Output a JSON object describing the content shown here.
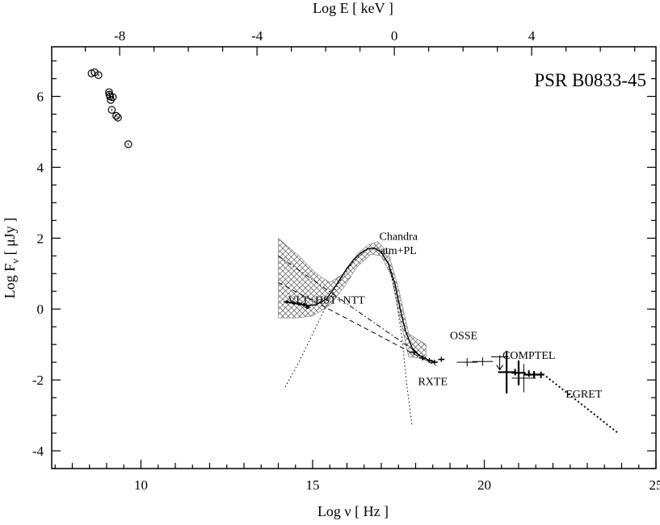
{
  "chart_data": {
    "type": "scatter",
    "title": "PSR B0833-45",
    "xlabel": "Log ν   [ Hz ]",
    "ylabel": {
      "main": "Log F",
      "subscript": "ν",
      "unit": " [ μJy ]"
    },
    "top_xlabel": "Log E  [ keV ]",
    "xlim": [
      7.4,
      25
    ],
    "ylim": [
      -4.5,
      7.4
    ],
    "top_xlim": [
      -9.98,
      7.62
    ],
    "xticks": [
      10,
      15,
      20,
      25
    ],
    "xtick_labels": [
      "10",
      "15",
      "20",
      "25"
    ],
    "yticks": [
      -4,
      -2,
      0,
      2,
      4,
      6
    ],
    "ytick_labels": [
      "-4",
      "-2",
      "0",
      "2",
      "4",
      "6"
    ],
    "top_xticks": [
      -8,
      -4,
      0,
      4
    ],
    "top_xtick_labels": [
      "-8",
      "-4",
      "0",
      "4"
    ],
    "grid": false,
    "annotations": [
      {
        "text": "VLT+HST+NTT",
        "x": 15.4,
        "y": 0.15
      },
      {
        "text": "Chandra",
        "x": 17.5,
        "y": 1.95
      },
      {
        "text": "atm+PL",
        "x": 17.5,
        "y": 1.55
      },
      {
        "text": "RXTE",
        "x": 18.5,
        "y": -2.15
      },
      {
        "text": "OSSE",
        "x": 19.4,
        "y": -0.85
      },
      {
        "text": "COMPTEL",
        "x": 21.3,
        "y": -1.4
      },
      {
        "text": "EGRET",
        "x": 22.9,
        "y": -2.5
      }
    ],
    "series": [
      {
        "style": "radio-circles",
        "points": [
          {
            "x": 8.56,
            "y": 6.65
          },
          {
            "x": 8.65,
            "y": 6.68
          },
          {
            "x": 8.76,
            "y": 6.6
          },
          {
            "x": 9.07,
            "y": 6.12
          },
          {
            "x": 9.08,
            "y": 6.05
          },
          {
            "x": 9.1,
            "y": 6.0
          },
          {
            "x": 9.18,
            "y": 5.98
          },
          {
            "x": 9.12,
            "y": 5.9
          },
          {
            "x": 9.15,
            "y": 5.62
          },
          {
            "x": 9.28,
            "y": 5.45
          },
          {
            "x": 9.33,
            "y": 5.4
          },
          {
            "x": 9.63,
            "y": 4.65
          }
        ]
      },
      {
        "style": "optical-points",
        "points": [
          {
            "x": 14.25,
            "y": 0.2
          },
          {
            "x": 14.45,
            "y": 0.17
          },
          {
            "x": 14.6,
            "y": 0.15
          },
          {
            "x": 14.75,
            "y": 0.12
          },
          {
            "x": 14.85,
            "y": 0.05
          }
        ]
      },
      {
        "style": "rxte-points",
        "points": [
          {
            "x": 17.95,
            "y": -1.22
          },
          {
            "x": 18.2,
            "y": -1.38
          },
          {
            "x": 18.4,
            "y": -1.45
          },
          {
            "x": 18.55,
            "y": -1.5
          },
          {
            "x": 18.75,
            "y": -1.42
          }
        ]
      },
      {
        "style": "osse-crosses",
        "points": [
          {
            "x": 19.5,
            "y": -1.5,
            "xerr": 0.3,
            "yerr": 0.12
          },
          {
            "x": 19.95,
            "y": -1.48,
            "xerr": 0.3,
            "yerr": 0.12
          },
          {
            "x": 20.45,
            "y": -1.35,
            "xerr": 0.25,
            "yerr": 0.05
          }
        ]
      },
      {
        "style": "comptel-crosses",
        "points": [
          {
            "x": 20.65,
            "y": -1.78,
            "xerr": 0.25,
            "yerr": 0.6
          },
          {
            "x": 21.0,
            "y": -1.8,
            "xerr": 0.2,
            "yerr": 0.35
          },
          {
            "x": 21.45,
            "y": -1.85,
            "xerr": 0.3,
            "yerr": 0.1
          }
        ]
      },
      {
        "style": "comptel-thin-crosses",
        "points": [
          {
            "x": 21.15,
            "y": -1.95,
            "xerr": 0.35,
            "yerr": 0.4
          }
        ]
      },
      {
        "style": "egret-bowtie-ticks",
        "points": [
          {
            "x": 20.9,
            "y": -1.78
          },
          {
            "x": 21.3,
            "y": -1.82
          },
          {
            "x": 21.65,
            "y": -1.86
          }
        ]
      },
      {
        "style": "chandra-atm-pl-curve",
        "points": [
          {
            "x": 14.2,
            "y": 0.2
          },
          {
            "x": 14.5,
            "y": 0.15
          },
          {
            "x": 14.8,
            "y": 0.1
          },
          {
            "x": 15.1,
            "y": 0.12
          },
          {
            "x": 15.4,
            "y": 0.28
          },
          {
            "x": 15.6,
            "y": 0.55
          },
          {
            "x": 15.8,
            "y": 0.85
          },
          {
            "x": 16.0,
            "y": 1.15
          },
          {
            "x": 16.2,
            "y": 1.4
          },
          {
            "x": 16.4,
            "y": 1.58
          },
          {
            "x": 16.6,
            "y": 1.7
          },
          {
            "x": 16.8,
            "y": 1.72
          },
          {
            "x": 17.0,
            "y": 1.6
          },
          {
            "x": 17.2,
            "y": 1.3
          },
          {
            "x": 17.4,
            "y": 0.7
          },
          {
            "x": 17.55,
            "y": 0.0
          },
          {
            "x": 17.7,
            "y": -0.6
          },
          {
            "x": 17.9,
            "y": -1.1
          },
          {
            "x": 18.1,
            "y": -1.3
          },
          {
            "x": 18.4,
            "y": -1.45
          },
          {
            "x": 18.6,
            "y": -1.5
          }
        ]
      },
      {
        "style": "blackbody-dotted",
        "points": [
          {
            "x": 14.2,
            "y": -2.2
          },
          {
            "x": 14.6,
            "y": -1.5
          },
          {
            "x": 15.0,
            "y": -0.7
          },
          {
            "x": 15.4,
            "y": 0.1
          },
          {
            "x": 15.8,
            "y": 0.8
          },
          {
            "x": 16.2,
            "y": 1.35
          },
          {
            "x": 16.6,
            "y": 1.68
          },
          {
            "x": 16.9,
            "y": 1.72
          },
          {
            "x": 17.2,
            "y": 1.3
          },
          {
            "x": 17.4,
            "y": 0.5
          },
          {
            "x": 17.6,
            "y": -0.8
          },
          {
            "x": 17.75,
            "y": -2.2
          },
          {
            "x": 17.9,
            "y": -3.3
          }
        ]
      },
      {
        "style": "powerlaw-dash-dot",
        "points": [
          {
            "x": 14.0,
            "y": 1.5
          },
          {
            "x": 18.0,
            "y": -1.2
          }
        ]
      },
      {
        "style": "powerlaw-dashed",
        "points": [
          {
            "x": 14.0,
            "y": 0.75
          },
          {
            "x": 18.6,
            "y": -1.6
          }
        ]
      },
      {
        "style": "egret-extrapolation-dotted",
        "points": [
          {
            "x": 21.8,
            "y": -1.9
          },
          {
            "x": 23.9,
            "y": -3.5
          }
        ]
      },
      {
        "style": "optical-uncertainty-hatched-band",
        "upper": [
          {
            "x": 14.0,
            "y": 2.0
          },
          {
            "x": 14.6,
            "y": 1.5
          },
          {
            "x": 15.1,
            "y": 1.0
          },
          {
            "x": 15.5,
            "y": 0.75
          },
          {
            "x": 15.9,
            "y": 1.0
          },
          {
            "x": 16.3,
            "y": 1.55
          },
          {
            "x": 16.6,
            "y": 1.8
          },
          {
            "x": 16.9,
            "y": 1.9
          },
          {
            "x": 17.2,
            "y": 1.6
          },
          {
            "x": 17.5,
            "y": 0.6
          },
          {
            "x": 17.8,
            "y": -0.7
          },
          {
            "x": 18.3,
            "y": -1.0
          }
        ],
        "lower": [
          {
            "x": 18.3,
            "y": -1.4
          },
          {
            "x": 17.8,
            "y": -1.35
          },
          {
            "x": 17.55,
            "y": -0.3
          },
          {
            "x": 17.3,
            "y": 0.9
          },
          {
            "x": 17.0,
            "y": 1.5
          },
          {
            "x": 16.7,
            "y": 1.55
          },
          {
            "x": 16.3,
            "y": 1.2
          },
          {
            "x": 15.9,
            "y": 0.6
          },
          {
            "x": 15.5,
            "y": 0.1
          },
          {
            "x": 15.0,
            "y": -0.2
          },
          {
            "x": 14.5,
            "y": -0.25
          },
          {
            "x": 14.0,
            "y": -0.25
          }
        ]
      }
    ]
  }
}
